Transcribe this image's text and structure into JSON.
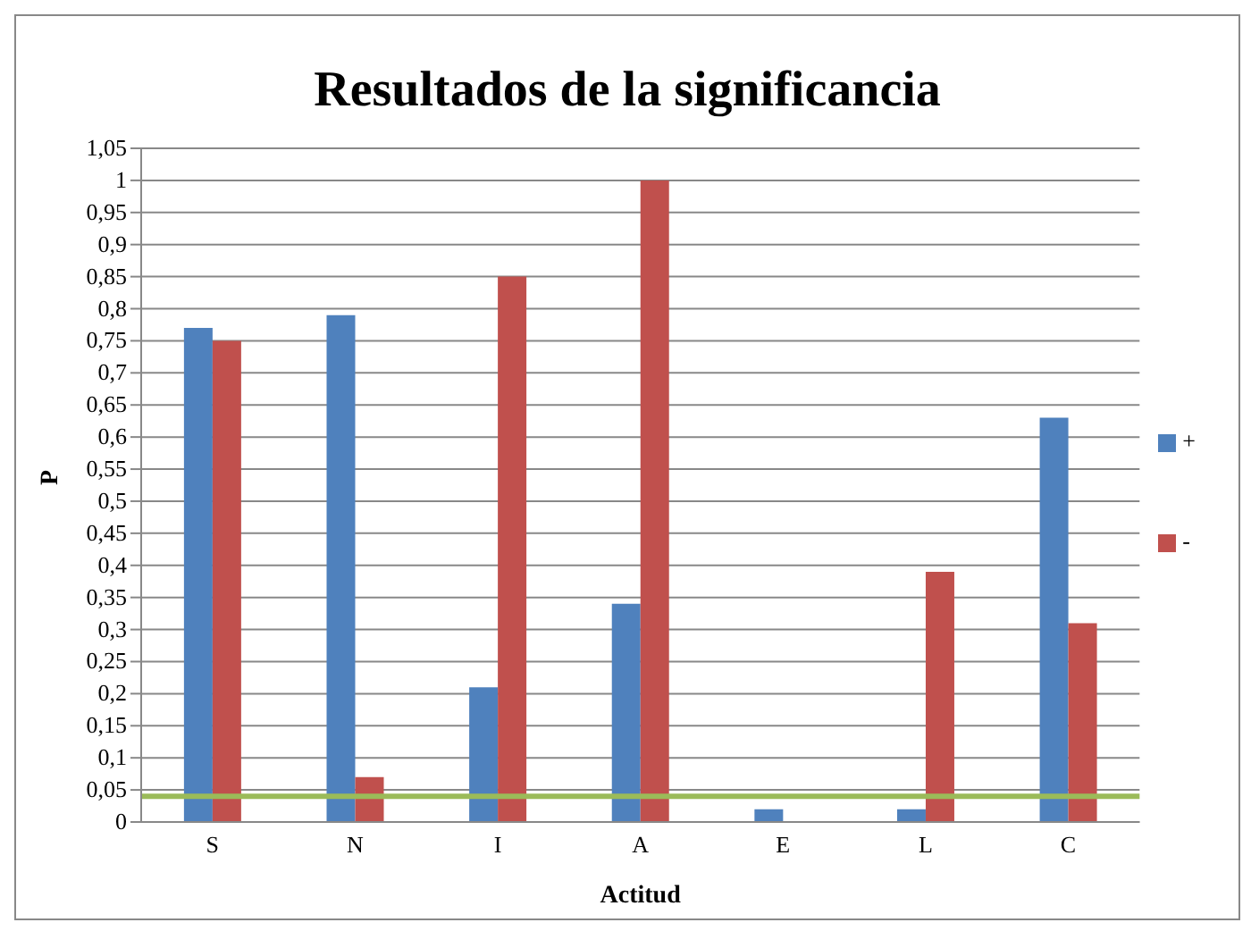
{
  "chart_data": {
    "type": "bar",
    "title": "Resultados de la significancia",
    "xlabel": "Actitud",
    "ylabel": "P",
    "categories": [
      "S",
      "N",
      "I",
      "A",
      "E",
      "L",
      "C"
    ],
    "series": [
      {
        "name": "+",
        "color": "#4f81bd",
        "values": [
          0.77,
          0.79,
          0.21,
          0.34,
          0.02,
          0.02,
          0.63
        ]
      },
      {
        "name": "-",
        "color": "#c0504d",
        "values": [
          0.75,
          0.07,
          0.85,
          1.0,
          0,
          0.39,
          0.31
        ]
      }
    ],
    "ylim": [
      0,
      1.05
    ],
    "yticks": [
      0,
      {
        "value": 0.05,
        "label": "0,05"
      },
      {
        "value": 0.1,
        "label": "0,1"
      },
      {
        "value": 0.15,
        "label": "0,15"
      },
      {
        "value": 0.2,
        "label": "0,2"
      },
      {
        "value": 0.25,
        "label": "0,25"
      },
      {
        "value": 0.3,
        "label": "0,3"
      },
      {
        "value": 0.35,
        "label": "0,35"
      },
      {
        "value": 0.4,
        "label": "0,4"
      },
      {
        "value": 0.45,
        "label": "0,45"
      },
      {
        "value": 0.5,
        "label": "0,5"
      },
      {
        "value": 0.55,
        "label": "0,55"
      },
      {
        "value": 0.6,
        "label": "0,6"
      },
      {
        "value": 0.65,
        "label": "0,65"
      },
      {
        "value": 0.7,
        "label": "0,7"
      },
      {
        "value": 0.75,
        "label": "0,75"
      },
      {
        "value": 0.8,
        "label": "0,8"
      },
      {
        "value": 0.85,
        "label": "0,85"
      },
      {
        "value": 0.9,
        "label": "0,9"
      },
      {
        "value": 0.95,
        "label": "0,95"
      },
      1,
      {
        "value": 1.05,
        "label": "1,05"
      }
    ],
    "ref_lines": [
      {
        "axis": "y",
        "value": 0.04,
        "color": "#9bbb59"
      }
    ],
    "grid": "y",
    "legend": "right"
  }
}
